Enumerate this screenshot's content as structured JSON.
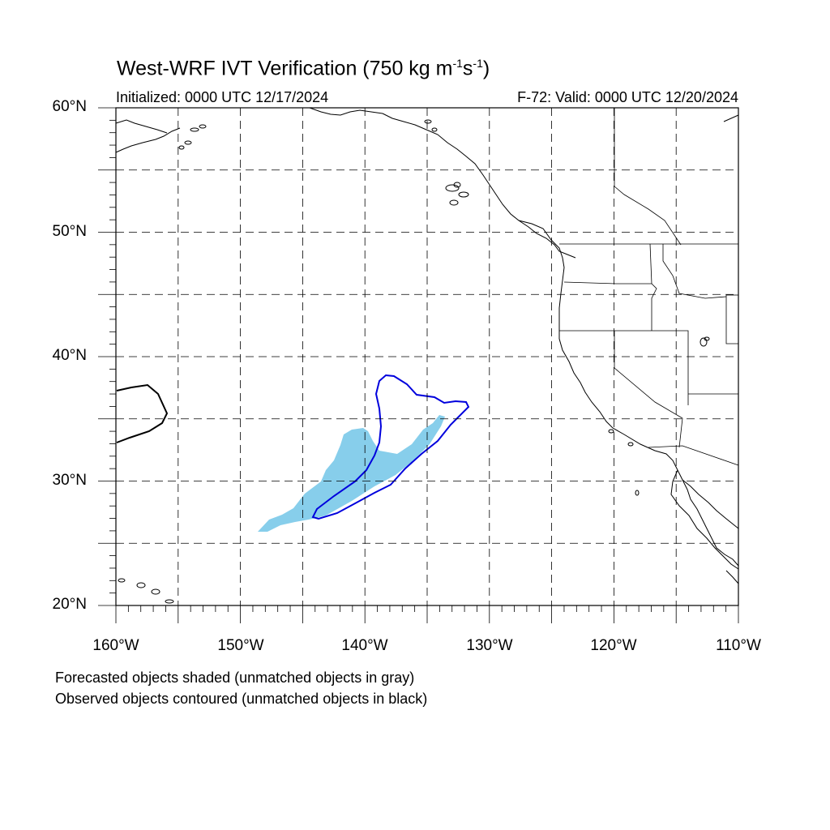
{
  "title": {
    "main": "West-WRF IVT Verification (750 kg m",
    "sup1": "-1",
    "mid": "s",
    "sup2": "-1",
    "end": ")"
  },
  "initialized": "Initialized: 0000 UTC 12/17/2024",
  "valid": "F-72: Valid: 0000 UTC 12/20/2024",
  "lat_labels": [
    "60°N",
    "50°N",
    "40°N",
    "30°N",
    "20°N"
  ],
  "lon_labels": [
    "160°W",
    "150°W",
    "140°W",
    "130°W",
    "120°W",
    "110°W"
  ],
  "footer": {
    "line1": "Forecasted objects shaded (unmatched objects in gray)",
    "line2": "Observed objects contoured (unmatched objects in black)"
  },
  "colors": {
    "forecast_fill": "#87ceeb",
    "observed_matched": "#0000dd",
    "observed_unmatched": "#000000",
    "grid": "#000000"
  },
  "map": {
    "projection": "cylindrical equidistant",
    "lon_range": [
      -160,
      -110
    ],
    "lat_range": [
      20,
      60
    ],
    "grid_lines": "dashed every 5 degrees"
  }
}
